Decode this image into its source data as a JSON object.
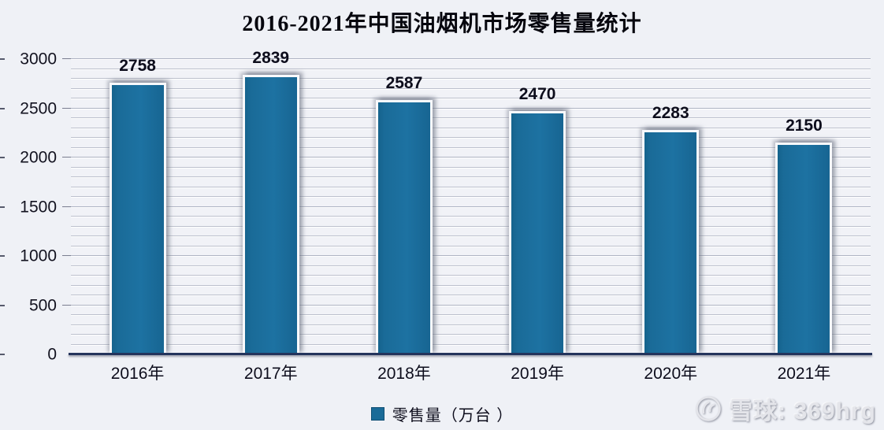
{
  "chart_data": {
    "type": "bar",
    "title": "2016-2021年中国油烟机市场零售量统计",
    "categories": [
      "2016年",
      "2017年",
      "2018年",
      "2019年",
      "2020年",
      "2021年"
    ],
    "values": [
      2758,
      2839,
      2587,
      2470,
      2283,
      2150
    ],
    "series": [
      {
        "name": "零售量（万台 ）",
        "values": [
          2758,
          2839,
          2587,
          2470,
          2283,
          2150
        ]
      }
    ],
    "xlabel": "",
    "ylabel": "",
    "ylim": [
      0,
      3000
    ],
    "y_major_step": 500,
    "y_minor_step": 100,
    "y_tick_labels": [
      "0",
      "500",
      "1000",
      "1500",
      "2000",
      "2500",
      "3000"
    ],
    "grid": "horizontal",
    "legend_position": "bottom",
    "colors": {
      "bar_fill": "#1a6b98",
      "bar_border": "#f8f9fc",
      "axis_line": "#24345c",
      "gridline": "#bcc0cd",
      "text": "#0d0d1c",
      "background": "#eff1f6"
    }
  },
  "legend": {
    "marker_icon": "square-swatch-icon",
    "marker_color": "#1a6b98",
    "label": "零售量（万台 ）"
  },
  "watermark": {
    "logo": "xueqiu-snowball-icon",
    "text": "雪球: 369hrg"
  }
}
